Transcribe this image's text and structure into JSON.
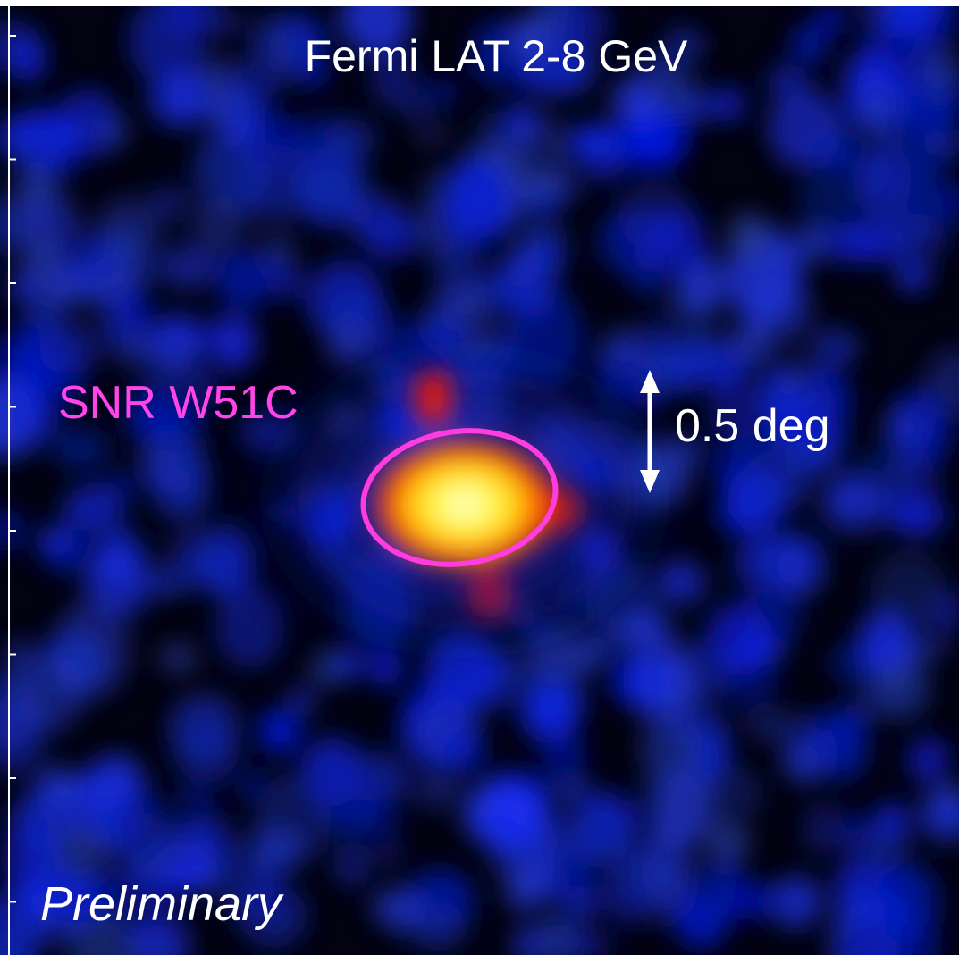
{
  "title": "Fermi LAT 2-8 GeV",
  "source_label": "SNR W51C",
  "scale_label": "0.5 deg",
  "watermark": "Preliminary"
}
